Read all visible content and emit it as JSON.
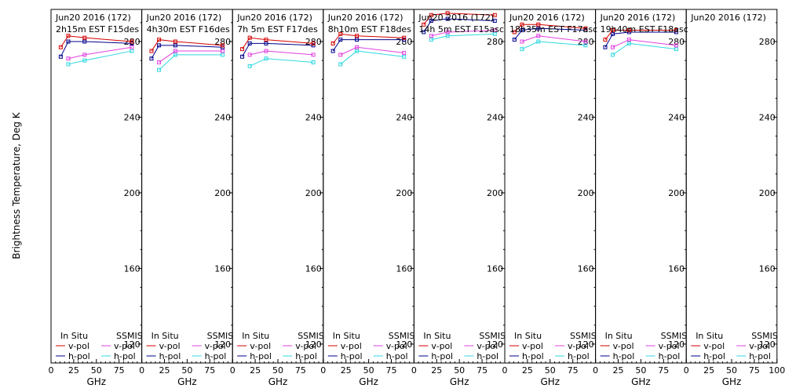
{
  "figure": {
    "ylabel": "Brightness Temperature, Deg K",
    "xlabel": "GHz"
  },
  "chart_data": {
    "type": "line",
    "ylabel": "Brightness Temperature, Deg K",
    "xlabel": "GHz",
    "xlim": [
      0,
      100
    ],
    "ylim": [
      110,
      297
    ],
    "xticks": [
      0,
      25,
      50,
      75,
      100
    ],
    "yticks": [
      120,
      160,
      200,
      240,
      280
    ],
    "legend": {
      "in_situ": "In Situ",
      "ssmis": "SSMIS",
      "vpol": "v-pol",
      "hpol": "h-pol"
    },
    "colors": {
      "insitu_v": "#d40000",
      "insitu_h": "#00008b",
      "ssmis_v": "#e040e0",
      "ssmis_h": "#30d8e0"
    },
    "panels": [
      {
        "date": "Jun20 2016 (172)",
        "subtitle": "2h15m EST F15des",
        "x": [
          10.7,
          19,
          37,
          89
        ],
        "insitu_v": [
          277,
          283,
          282,
          280
        ],
        "insitu_h": [
          272,
          280,
          280,
          279
        ],
        "ssmis_v": [
          null,
          271,
          273,
          277
        ],
        "ssmis_h": [
          null,
          268,
          270,
          275
        ]
      },
      {
        "date": "Jun20 2016 (172)",
        "subtitle": "4h30m EST F16des",
        "x": [
          10.7,
          19,
          37,
          89
        ],
        "insitu_v": [
          275,
          281,
          280,
          278
        ],
        "insitu_h": [
          271,
          278,
          278,
          277
        ],
        "ssmis_v": [
          null,
          269,
          275,
          275
        ],
        "ssmis_h": [
          null,
          265,
          273,
          273
        ]
      },
      {
        "date": "Jun20 2016 (172)",
        "subtitle": "7h 5m EST F17des",
        "x": [
          10.7,
          19,
          37,
          89
        ],
        "insitu_v": [
          276,
          282,
          281,
          279
        ],
        "insitu_h": [
          272,
          279,
          279,
          278
        ],
        "ssmis_v": [
          null,
          273,
          275,
          273
        ],
        "ssmis_h": [
          null,
          267,
          271,
          269
        ]
      },
      {
        "date": "Jun20 2016 (172)",
        "subtitle": "8h10m EST F18des",
        "x": [
          10.7,
          19,
          37,
          89
        ],
        "insitu_v": [
          279,
          284,
          283,
          282
        ],
        "insitu_h": [
          275,
          281,
          281,
          281
        ],
        "ssmis_v": [
          null,
          273,
          277,
          274
        ],
        "ssmis_h": [
          null,
          268,
          275,
          272
        ]
      },
      {
        "date": "Jun20 2016 (172)",
        "subtitle": "14h 5m EST F15asc",
        "x": [
          10.7,
          19,
          37,
          89
        ],
        "insitu_v": [
          289,
          294,
          295,
          294
        ],
        "insitu_h": [
          285,
          291,
          292,
          291
        ],
        "ssmis_v": [
          null,
          283,
          285,
          286
        ],
        "ssmis_h": [
          null,
          281,
          283,
          284
        ]
      },
      {
        "date": "Jun20 2016 (172)",
        "subtitle": "18h35m EST F17asc",
        "x": [
          10.7,
          19,
          37,
          89
        ],
        "insitu_v": [
          285,
          289,
          289,
          287
        ],
        "insitu_h": [
          281,
          286,
          287,
          286
        ],
        "ssmis_v": [
          null,
          280,
          283,
          280
        ],
        "ssmis_h": [
          null,
          276,
          280,
          278
        ]
      },
      {
        "date": "Jun20 2016 (172)",
        "subtitle": "19h40m EST F18asc",
        "x": [
          10.7,
          19,
          37,
          89
        ],
        "insitu_v": [
          281,
          286,
          286,
          286
        ],
        "insitu_h": [
          277,
          284,
          285,
          285
        ],
        "ssmis_v": [
          null,
          277,
          281,
          278
        ],
        "ssmis_h": [
          null,
          273,
          279,
          276
        ]
      },
      {
        "date": "Jun20 2016 (172)",
        "subtitle": "",
        "x": [],
        "insitu_v": [],
        "insitu_h": [],
        "ssmis_v": [],
        "ssmis_h": []
      }
    ]
  }
}
